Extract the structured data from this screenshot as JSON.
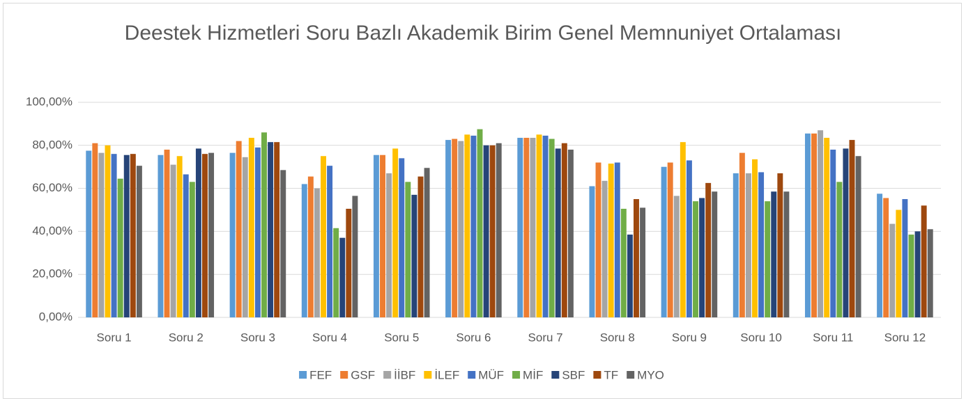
{
  "chart_data": {
    "type": "bar",
    "title": "Deestek Hizmetleri Soru Bazlı Akademik Birim Genel Memnuniyet Ortalaması",
    "categories": [
      "Soru 1",
      "Soru 2",
      "Soru 3",
      "Soru 4",
      "Soru 5",
      "Soru 6",
      "Soru 7",
      "Soru 8",
      "Soru 9",
      "Soru 10",
      "Soru 11",
      "Soru 12"
    ],
    "series": [
      {
        "name": "FEF",
        "color": "#5b9bd5",
        "values": [
          77.5,
          75.5,
          76.5,
          62,
          75.5,
          82.5,
          83.5,
          61,
          70,
          67,
          85.5,
          57.5
        ]
      },
      {
        "name": "GSF",
        "color": "#ed7d31",
        "values": [
          81,
          78,
          82,
          65.5,
          75.5,
          83,
          83.5,
          72,
          72,
          76.5,
          85.5,
          55.5
        ]
      },
      {
        "name": "İİBF",
        "color": "#a5a5a5",
        "values": [
          76.5,
          71,
          74.5,
          60,
          67,
          82,
          83.5,
          63.5,
          56.5,
          67,
          87,
          43.5
        ]
      },
      {
        "name": "İLEF",
        "color": "#ffc000",
        "values": [
          80,
          75,
          83.5,
          75,
          78.5,
          85,
          85,
          71.5,
          81.5,
          73.5,
          83.5,
          50
        ]
      },
      {
        "name": "MÜF",
        "color": "#4472c4",
        "values": [
          76,
          66.5,
          79,
          70.5,
          74,
          84.5,
          84.5,
          72,
          73,
          67.5,
          78,
          55
        ]
      },
      {
        "name": "MİF",
        "color": "#70ad47",
        "values": [
          64.5,
          63,
          86,
          41.5,
          63,
          87.5,
          83,
          50.5,
          54,
          54,
          63,
          38.5
        ]
      },
      {
        "name": "SBF",
        "color": "#264478",
        "values": [
          75.5,
          78.5,
          81.5,
          37,
          57,
          80,
          78.5,
          38.5,
          55.5,
          58.5,
          78.5,
          40
        ]
      },
      {
        "name": "TF",
        "color": "#9e480e",
        "values": [
          76,
          76,
          81.5,
          50.5,
          65.5,
          80,
          81,
          55,
          62.5,
          67,
          82.5,
          52
        ]
      },
      {
        "name": "MYO",
        "color": "#636363",
        "values": [
          70.5,
          76.5,
          68.5,
          56.5,
          69.5,
          81,
          78,
          51,
          58.5,
          58.5,
          75,
          41
        ]
      }
    ],
    "ylim": [
      0,
      100
    ],
    "yticks": [
      {
        "value": 0,
        "label": "0,00%"
      },
      {
        "value": 20,
        "label": "20,00%"
      },
      {
        "value": 40,
        "label": "40,00%"
      },
      {
        "value": 60,
        "label": "60,00%"
      },
      {
        "value": 80,
        "label": "80,00%"
      },
      {
        "value": 100,
        "label": "100,00%"
      }
    ],
    "grid": true,
    "legend": "bottom"
  }
}
